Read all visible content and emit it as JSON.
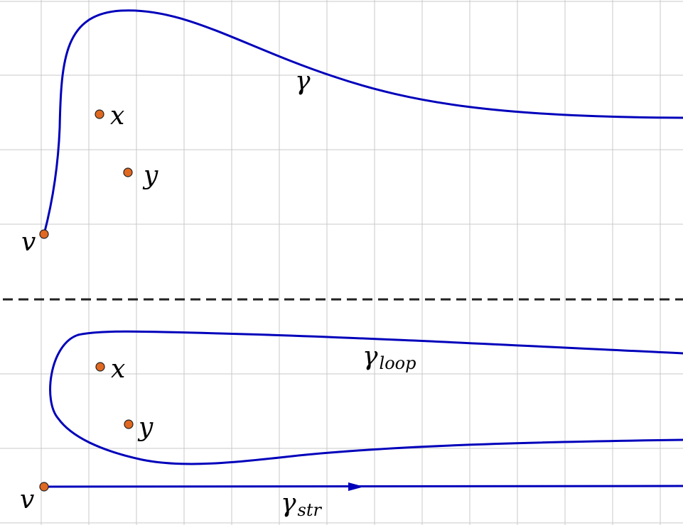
{
  "labels": {
    "top_gamma": "γ",
    "top_x": "x",
    "top_y": "y",
    "top_v": "v",
    "bottom_gamma_loop_base": "γ",
    "bottom_gamma_loop_sub": "loop",
    "bottom_x": "x",
    "bottom_y": "y",
    "bottom_v": "v",
    "bottom_gamma_str_base": "γ",
    "bottom_gamma_str_sub": "str"
  },
  "colors": {
    "curve": "#0000bb",
    "vertex_fill": "#e06820",
    "grid": "#c8c8c8",
    "divider": "#222222"
  }
}
